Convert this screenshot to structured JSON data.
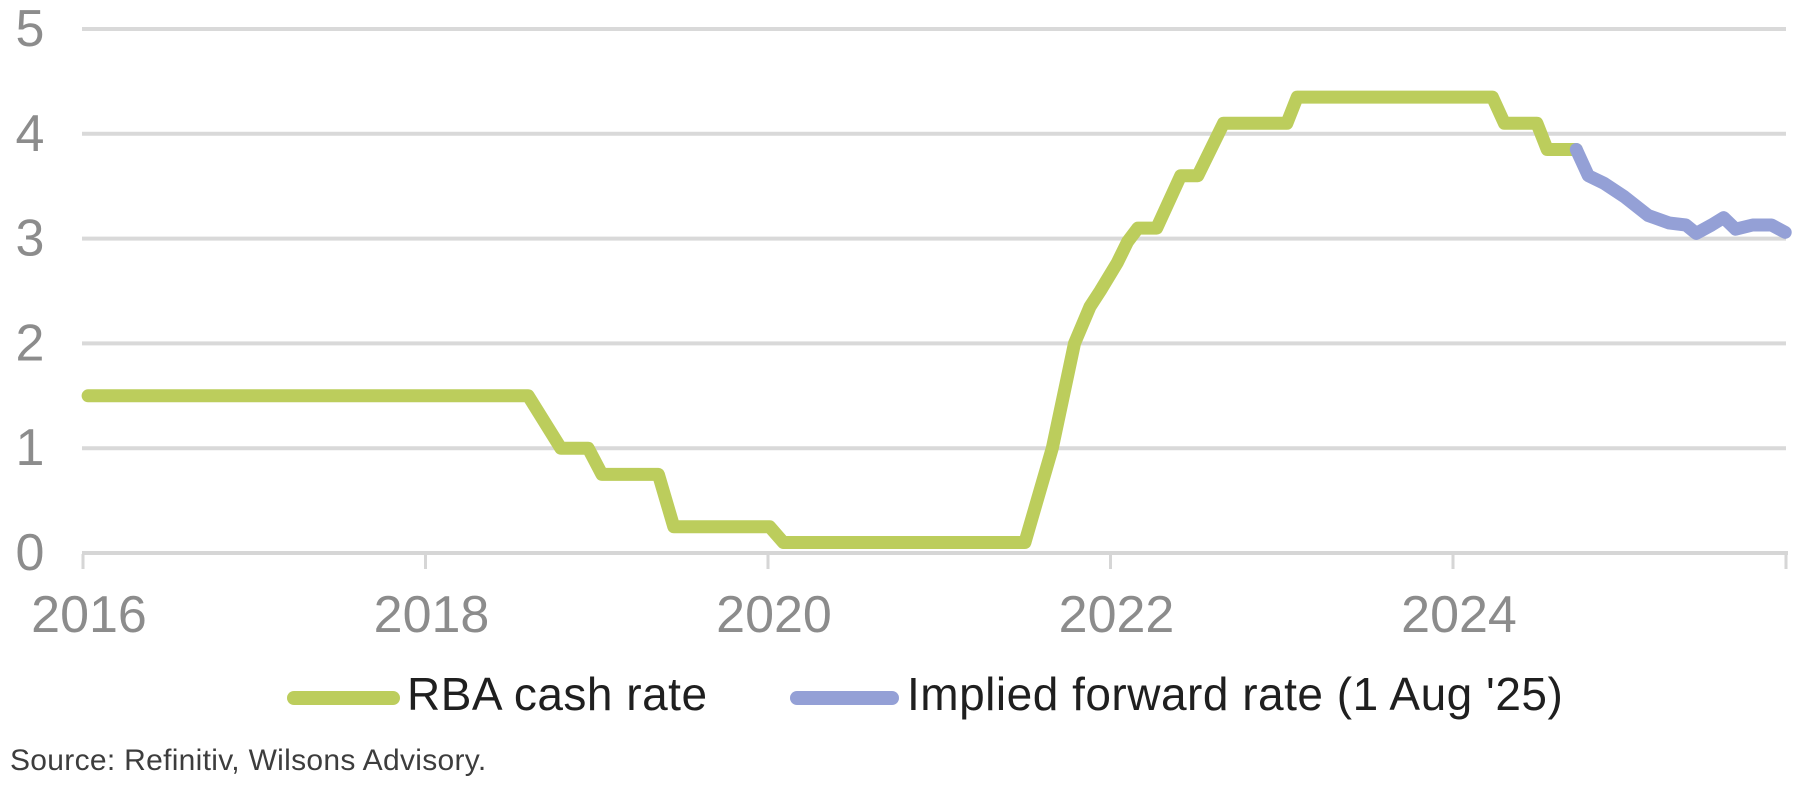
{
  "chart_data": {
    "type": "line",
    "title": "",
    "xlabel": "",
    "ylabel": "",
    "xlim": [
      2015.97,
      2025.96
    ],
    "ylim": [
      0,
      5
    ],
    "x_ticks": [
      2016,
      2018,
      2020,
      2022,
      2024
    ],
    "y_ticks": [
      0,
      1,
      2,
      3,
      4,
      5
    ],
    "grid": "horizontal",
    "legend_position": "bottom",
    "series": [
      {
        "name": "RBA cash rate",
        "color": "#bccd5c",
        "points": [
          [
            2016.03,
            1.5
          ],
          [
            2018.6,
            1.5
          ],
          [
            2018.79,
            1.0
          ],
          [
            2018.95,
            1.0
          ],
          [
            2019.03,
            0.75
          ],
          [
            2019.36,
            0.75
          ],
          [
            2019.45,
            0.25
          ],
          [
            2020.01,
            0.25
          ],
          [
            2020.09,
            0.1
          ],
          [
            2021.5,
            0.1
          ],
          [
            2021.66,
            1.0
          ],
          [
            2021.79,
            2.0
          ],
          [
            2021.88,
            2.35
          ],
          [
            2021.94,
            2.5
          ],
          [
            2022.04,
            2.77
          ],
          [
            2022.1,
            2.97
          ],
          [
            2022.16,
            3.1
          ],
          [
            2022.27,
            3.1
          ],
          [
            2022.41,
            3.6
          ],
          [
            2022.51,
            3.6
          ],
          [
            2022.66,
            4.1
          ],
          [
            2023.03,
            4.1
          ],
          [
            2023.09,
            4.35
          ],
          [
            2024.23,
            4.35
          ],
          [
            2024.3,
            4.1
          ],
          [
            2024.49,
            4.1
          ],
          [
            2024.55,
            3.85
          ],
          [
            2024.72,
            3.85
          ]
        ]
      },
      {
        "name": "Implied forward rate (1 Aug '25)",
        "color": "#94a0d6",
        "points": [
          [
            2024.72,
            3.85
          ],
          [
            2024.79,
            3.6
          ],
          [
            2024.88,
            3.53
          ],
          [
            2025.0,
            3.4
          ],
          [
            2025.14,
            3.22
          ],
          [
            2025.26,
            3.15
          ],
          [
            2025.36,
            3.13
          ],
          [
            2025.42,
            3.05
          ],
          [
            2025.51,
            3.13
          ],
          [
            2025.58,
            3.2
          ],
          [
            2025.65,
            3.09
          ],
          [
            2025.75,
            3.13
          ],
          [
            2025.86,
            3.13
          ],
          [
            2025.94,
            3.06
          ]
        ]
      }
    ]
  },
  "legend": {
    "items": [
      {
        "label": "RBA cash rate",
        "color": "#bccd5c"
      },
      {
        "label": "Implied forward rate (1 Aug '25)",
        "color": "#94a0d6"
      }
    ]
  },
  "source_note": "Source: Refinitiv, Wilsons Advisory.",
  "colors": {
    "gridline": "#d9d9d9",
    "axis_line": "#d6d6d6",
    "tick_label": "#8c8c8c",
    "legend_text": "#1f1f1f",
    "source_text": "#3d3d3d",
    "background": "#ffffff"
  }
}
